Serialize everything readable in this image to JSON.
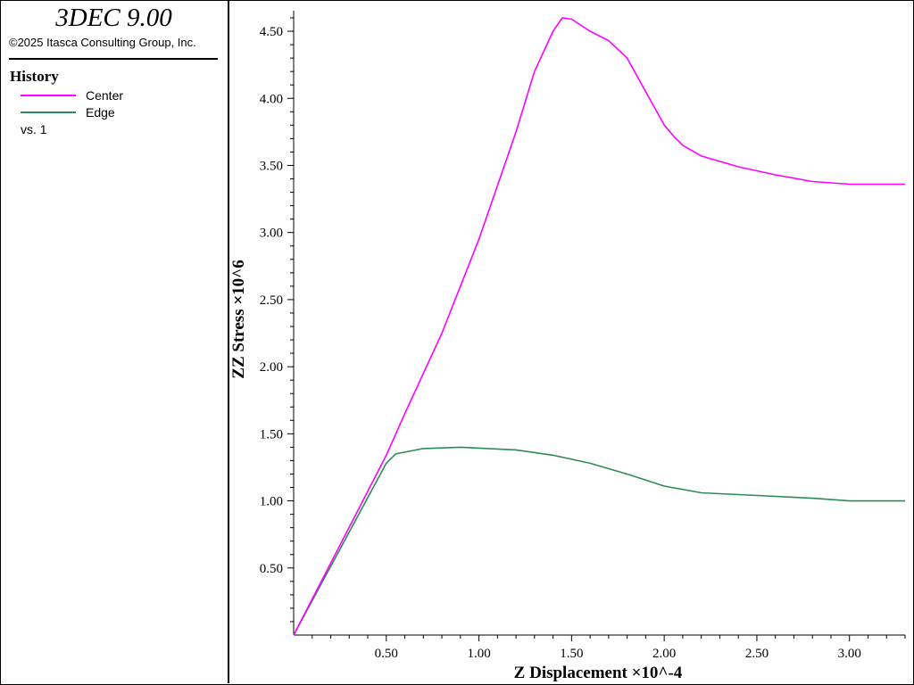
{
  "app": {
    "title": "3DEC 9.00",
    "copyright": "©2025 Itasca Consulting Group, Inc."
  },
  "legend": {
    "heading": "History",
    "items": [
      {
        "label": "Center",
        "color": "#ff00ff"
      },
      {
        "label": "Edge",
        "color": "#2e8b57"
      }
    ],
    "vs_label": "vs. 1"
  },
  "chart_data": {
    "type": "line",
    "xlabel": "Z Displacement ×10^-4",
    "ylabel": "ZZ Stress ×10^6",
    "xlim": [
      0,
      3.3
    ],
    "ylim": [
      0,
      4.6
    ],
    "xticks": [
      "0.50",
      "1.00",
      "1.50",
      "2.00",
      "2.50",
      "3.00"
    ],
    "yticks": [
      "0.50",
      "1.00",
      "1.50",
      "2.00",
      "2.50",
      "3.00",
      "3.50",
      "4.00",
      "4.50"
    ],
    "grid": false,
    "series": [
      {
        "name": "Center",
        "color": "#ff00ff",
        "x": [
          0,
          0.5,
          0.6,
          0.8,
          1.0,
          1.2,
          1.3,
          1.4,
          1.45,
          1.5,
          1.6,
          1.7,
          1.8,
          1.9,
          2.0,
          2.05,
          2.1,
          2.2,
          2.4,
          2.6,
          2.8,
          3.0,
          3.3
        ],
        "y": [
          0,
          1.34,
          1.65,
          2.25,
          2.95,
          3.75,
          4.2,
          4.5,
          4.6,
          4.59,
          4.5,
          4.43,
          4.3,
          4.05,
          3.8,
          3.72,
          3.65,
          3.57,
          3.49,
          3.43,
          3.38,
          3.36,
          3.36
        ]
      },
      {
        "name": "Edge",
        "color": "#2e8b57",
        "x": [
          0,
          0.5,
          0.55,
          0.7,
          0.9,
          1.2,
          1.4,
          1.6,
          1.8,
          2.0,
          2.2,
          2.5,
          2.8,
          3.0,
          3.3
        ],
        "y": [
          0,
          1.28,
          1.35,
          1.39,
          1.4,
          1.38,
          1.34,
          1.28,
          1.2,
          1.11,
          1.06,
          1.04,
          1.02,
          1.0,
          1.0
        ]
      }
    ]
  }
}
